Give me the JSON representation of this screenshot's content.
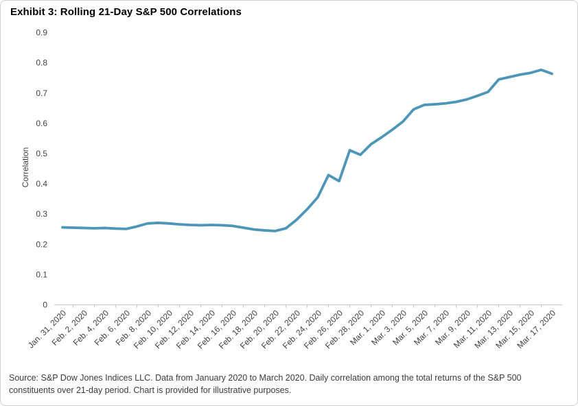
{
  "card": {
    "title": "Exhibit 3: Rolling 21-Day S&P 500 Correlations"
  },
  "footer": {
    "source": "Source: S&P Dow Jones Indices LLC. Data from January 2020 to March 2020. Daily correlation among the total returns of the S&P 500 constituents over 21-day period. Chart is provided for illustrative purposes."
  },
  "chart_data": {
    "type": "line",
    "title": "Exhibit 3: Rolling 21-Day S&P 500 Correlations",
    "xlabel": "",
    "ylabel": "Correlation",
    "ylim": [
      0,
      0.9
    ],
    "ytick_step": 0.1,
    "grid": false,
    "legend_position": "none",
    "line_color": "#4e96b8",
    "axis_color": "#c6c6c6",
    "tick_label_color": "#404040",
    "x_label_step": 2,
    "x_labels": [
      "Jan. 31, 2020",
      "Feb. 2, 2020",
      "Feb. 4, 2020",
      "Feb. 6, 2020",
      "Feb. 8, 2020",
      "Feb. 10, 2020",
      "Feb. 12, 2020",
      "Feb. 14, 2020",
      "Feb. 16, 2020",
      "Feb. 18, 2020",
      "Feb. 20, 2020",
      "Feb. 22, 2020",
      "Feb. 24, 2020",
      "Feb. 26, 2020",
      "Feb. 28, 2020",
      "Mar. 1, 2020",
      "Mar. 3, 2020",
      "Mar. 5, 2020",
      "Mar. 7, 2020",
      "Mar. 9, 2020",
      "Mar. 11, 2020",
      "Mar. 13, 2020",
      "Mar. 15, 2020",
      "Mar. 17, 2020"
    ],
    "series": [
      {
        "name": "Rolling 21-day correlation",
        "values": [
          0.255,
          0.254,
          0.253,
          0.252,
          0.253,
          0.251,
          0.25,
          0.258,
          0.268,
          0.27,
          0.268,
          0.265,
          0.263,
          0.262,
          0.263,
          0.262,
          0.26,
          0.254,
          0.248,
          0.245,
          0.243,
          0.252,
          0.28,
          0.315,
          0.355,
          0.428,
          0.408,
          0.51,
          0.495,
          0.53,
          0.553,
          0.578,
          0.605,
          0.645,
          0.66,
          0.662,
          0.665,
          0.67,
          0.678,
          0.69,
          0.703,
          0.744,
          0.752,
          0.76,
          0.766,
          0.776,
          0.763
        ]
      }
    ]
  }
}
